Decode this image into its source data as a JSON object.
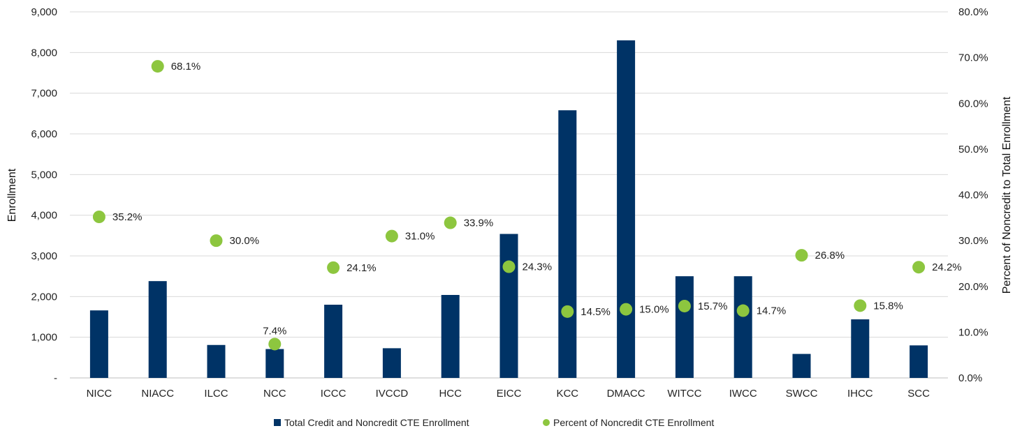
{
  "chart_data": {
    "type": "bar",
    "categories": [
      "NICC",
      "NIACC",
      "ILCC",
      "NCC",
      "ICCC",
      "IVCCD",
      "HCC",
      "EICC",
      "KCC",
      "DMACC",
      "WITCC",
      "IWCC",
      "SWCC",
      "IHCC",
      "SCC"
    ],
    "series": [
      {
        "name": "Total Credit and Noncredit CTE Enrollment",
        "type": "bar",
        "axis": "left",
        "color": "#003366",
        "values": [
          1660,
          2380,
          810,
          710,
          1800,
          730,
          2040,
          3540,
          6580,
          8300,
          2500,
          2500,
          590,
          1440,
          800
        ]
      },
      {
        "name": "Percent of Noncredit CTE Enrollment",
        "type": "scatter",
        "axis": "right",
        "color": "#8DC63F",
        "values": [
          35.2,
          68.1,
          30.0,
          7.4,
          24.1,
          31.0,
          33.9,
          24.3,
          14.5,
          15.0,
          15.7,
          14.7,
          26.8,
          15.8,
          24.2
        ],
        "labels": [
          "35.2%",
          "68.1%",
          "30.0%",
          "7.4%",
          "24.1%",
          "31.0%",
          "33.9%",
          "24.3%",
          "14.5%",
          "15.0%",
          "15.7%",
          "14.7%",
          "26.8%",
          "15.8%",
          "24.2%"
        ]
      }
    ],
    "ylabel": "Enrollment",
    "y2label": "Percent of Noncredit to Total Enrollment",
    "ylim": [
      0,
      9000
    ],
    "y2lim": [
      0,
      80
    ],
    "yticks": [
      "-",
      "1,000",
      "2,000",
      "3,000",
      "4,000",
      "5,000",
      "6,000",
      "7,000",
      "8,000",
      "9,000"
    ],
    "y2ticks": [
      "0.0%",
      "10.0%",
      "20.0%",
      "30.0%",
      "40.0%",
      "50.0%",
      "60.0%",
      "70.0%",
      "80.0%"
    ],
    "grid": true,
    "legend_position": "bottom"
  }
}
